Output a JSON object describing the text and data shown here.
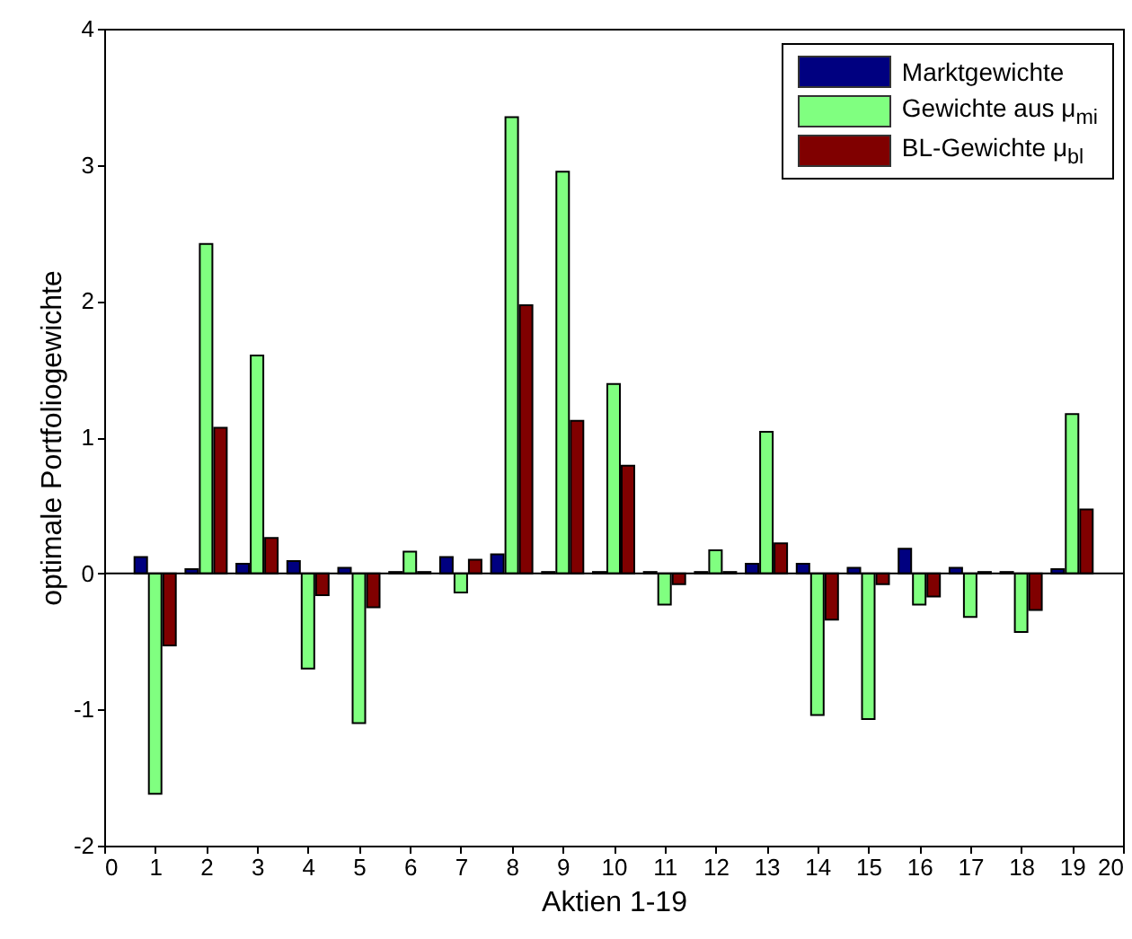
{
  "chart_data": {
    "type": "bar",
    "xlabel": "Aktien 1-19",
    "ylabel": "optimale Portfoliogewichte",
    "x": [
      1,
      2,
      3,
      4,
      5,
      6,
      7,
      8,
      9,
      10,
      11,
      12,
      13,
      14,
      15,
      16,
      17,
      18,
      19
    ],
    "xlim": [
      0,
      20
    ],
    "xticks": [
      0,
      1,
      2,
      3,
      4,
      5,
      6,
      7,
      8,
      9,
      10,
      11,
      12,
      13,
      14,
      15,
      16,
      17,
      18,
      19,
      20
    ],
    "ylim": [
      -2,
      4
    ],
    "yticks": [
      -2,
      -1,
      0,
      1,
      2,
      3,
      4
    ],
    "series": [
      {
        "name": "Marktgewichte",
        "color": "#000080",
        "values": [
          0.12,
          0.03,
          0.07,
          0.09,
          0.04,
          0.01,
          0.12,
          0.14,
          0.01,
          0.01,
          0.01,
          0.01,
          0.07,
          0.07,
          0.04,
          0.18,
          0.04,
          0.01,
          0.03
        ]
      },
      {
        "name": "Gewichte aus μ$_{mi}$",
        "color": "#80ff80",
        "values": [
          -1.62,
          2.42,
          1.6,
          -0.7,
          -1.1,
          0.16,
          -0.14,
          3.35,
          2.95,
          1.39,
          -0.23,
          0.17,
          1.04,
          -1.04,
          -1.07,
          -0.23,
          -0.32,
          -0.43,
          1.17
        ]
      },
      {
        "name": "BL-Gewichte μ$_{bl}$",
        "color": "#800000",
        "values": [
          -0.53,
          1.07,
          0.26,
          -0.16,
          -0.25,
          0.01,
          0.1,
          1.97,
          1.12,
          0.79,
          -0.08,
          0.01,
          0.22,
          -0.34,
          -0.08,
          -0.17,
          0.01,
          -0.27,
          0.47
        ]
      }
    ],
    "ref_lines": [
      {
        "axis": "y",
        "value": 0,
        "color": "#000000"
      }
    ],
    "legend": "top right",
    "grid": false
  }
}
